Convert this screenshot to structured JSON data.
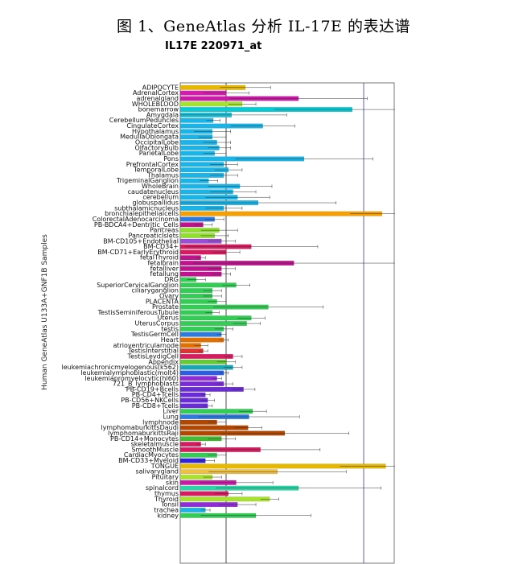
{
  "caption": "图 1、GeneAtlas 分析 IL-17E 的表达谱",
  "chart_data": {
    "type": "bar",
    "orientation": "horizontal",
    "title": "IL17E 220971_at",
    "ylabel": "Human GeneAtlas U133A+GNF1B Samples",
    "xlabel": "",
    "reference_lines": [
      1,
      4
    ],
    "grid": false,
    "categories": [
      "ADIPOCYTE",
      "AdrenalCortex",
      "adrenalgland",
      "WHOLEBLOOD",
      "bonemarrow",
      "Amygdala",
      "CerebellumPeduncles",
      "CingulateCortex",
      "Hypothalamus",
      "MedullaOblongata",
      "OccipitalLobe",
      "OlfactoryBulb",
      "ParietalLobe",
      "Pons",
      "PrefrontalCortex",
      "TemporalLobe",
      "Thalamus",
      "TrigeminalGanglion",
      "WholeBrain",
      "caudatenucleus",
      "cerebellum",
      "globuspallidus",
      "subthalamicnucleus",
      "bronchialepithelialcells",
      "ColorectalAdenocarcinoma",
      "PB-BDCA4+Dentritic_Cells",
      "Pancreas",
      "PancreaticIslets",
      "BM-CD105+Endothelial",
      "BM-CD34+",
      "BM-CD71+EarlyErythroid",
      "fetalThyroid",
      "fetalbrain",
      "fetalliver",
      "fetallung",
      "DRG",
      "SuperiorCervicalGanglion",
      "ciliaryganglion",
      "Ovary",
      "PLACENTA",
      "Prostate",
      "TestisSeminiferousTubule",
      "Uterus",
      "UterusCorpus",
      "testis",
      "TestisGermCell",
      "Heart",
      "atrioventricularnode",
      "TestisInterstitial",
      "TestisLeydigCell",
      "Appendix",
      "leukemiachronicmyelogenous(k562)",
      "leukemialymphoblastic(molt4)",
      "leukemiapromyelocytic(hl60)",
      "721_B_lymphoblasts",
      "PB-CD19+Bcells",
      "PB-CD4+Tcells",
      "PB-CD56+NKCells",
      "PB-CD8+Tcells",
      "Liver",
      "Lung",
      "lymphnode",
      "lymphomaburkittsDaudi",
      "lymphomaburkittsRaji",
      "PB-CD14+Monocytes",
      "skeletalmuscle",
      "SmoothMuscle",
      "CardiacMyocytes",
      "BM-CD33+Myeloid",
      "TONGUE",
      "salivarygland",
      "Pituitary",
      "skin",
      "spinalcord",
      "thymus",
      "Thyroid",
      "Tonsil",
      "trachea",
      "kidney"
    ],
    "values": [
      1.42,
      1.0,
      2.58,
      1.35,
      3.75,
      1.12,
      0.72,
      1.8,
      0.7,
      0.7,
      0.8,
      0.85,
      0.75,
      2.7,
      0.95,
      1.05,
      0.95,
      0.62,
      1.3,
      1.15,
      1.25,
      1.7,
      0.95,
      4.4,
      0.75,
      0.5,
      0.85,
      0.75,
      0.9,
      1.55,
      1.0,
      0.45,
      2.48,
      0.9,
      0.9,
      0.35,
      1.22,
      0.7,
      0.7,
      0.8,
      1.92,
      0.7,
      1.55,
      1.45,
      0.95,
      0.9,
      0.95,
      0.45,
      0.5,
      1.15,
      1.0,
      1.15,
      0.95,
      0.8,
      0.95,
      1.38,
      0.55,
      0.6,
      0.6,
      1.58,
      1.5,
      0.8,
      1.48,
      2.28,
      0.9,
      0.45,
      1.75,
      0.8,
      0.55,
      4.48,
      2.12,
      0.7,
      1.22,
      2.58,
      1.05,
      1.95,
      1.25,
      0.55,
      1.65
    ],
    "errors": [
      0.55,
      0.5,
      1.5,
      0.3,
      1.7,
      1.2,
      0.15,
      0.7,
      0.4,
      0.3,
      0.3,
      0.25,
      0.25,
      1.5,
      0.3,
      0.3,
      0.3,
      0.2,
      0.7,
      0.5,
      0.7,
      1.7,
      0.4,
      0.7,
      0.2,
      0.2,
      0.4,
      0.3,
      0.3,
      1.45,
      0.3,
      0.1,
      2.2,
      0.3,
      0.2,
      0.2,
      0.3,
      0.2,
      0.2,
      0.2,
      1.2,
      0.15,
      0.3,
      0.3,
      0.2,
      0.1,
      0.1,
      0.15,
      0.1,
      0.2,
      0.2,
      0.2,
      0.1,
      0.1,
      0.2,
      0.25,
      0.1,
      0.15,
      0.1,
      0.3,
      1.1,
      0.2,
      0.3,
      1.4,
      0.3,
      0.1,
      1.3,
      0.2,
      0.2,
      1.0,
      1.5,
      0.2,
      0.8,
      1.8,
      0.3,
      0.2,
      0.4,
      0.1,
      1.2
    ],
    "colors": [
      "#e6b800",
      "#d81bb0",
      "#cc1aa8",
      "#a6e22e",
      "#00ccd6",
      "#19c0d9",
      "#19b4e8",
      "#19b4e8",
      "#19b4e8",
      "#19b4e8",
      "#19b4e8",
      "#19b4e8",
      "#19b4e8",
      "#19b4e8",
      "#19b4e8",
      "#19b4e8",
      "#19b4e8",
      "#19b4e8",
      "#19b4e8",
      "#19b4e8",
      "#19b4e8",
      "#19b4e8",
      "#19b4e8",
      "#f59f00",
      "#2b7be0",
      "#c0128f",
      "#8fe02b",
      "#8fe02b",
      "#9b4fd8",
      "#d81b60",
      "#d81b60",
      "#c0128f",
      "#c0128f",
      "#c0128f",
      "#c0128f",
      "#33cc55",
      "#33cc55",
      "#33cc55",
      "#33cc55",
      "#33cc55",
      "#33cc55",
      "#33cc55",
      "#33cc55",
      "#33cc55",
      "#33cc55",
      "#2b7be0",
      "#e07000",
      "#e07000",
      "#e03030",
      "#d81b60",
      "#66cc33",
      "#1aa6b3",
      "#2b5ee0",
      "#8f2bd8",
      "#7a2bd8",
      "#6a2bd8",
      "#6a2bd8",
      "#6a2bd8",
      "#6a2bd8",
      "#33cc55",
      "#2b7be0",
      "#b34700",
      "#b34700",
      "#b34700",
      "#44bb33",
      "#d81b60",
      "#d81b60",
      "#33cc55",
      "#3322dd",
      "#e6b800",
      "#f0c040",
      "#a6e22e",
      "#cc1aa8",
      "#2bd6a6",
      "#d81b60",
      "#a6e22e",
      "#8f2bd8",
      "#19b4e8",
      "#33cc55"
    ]
  }
}
